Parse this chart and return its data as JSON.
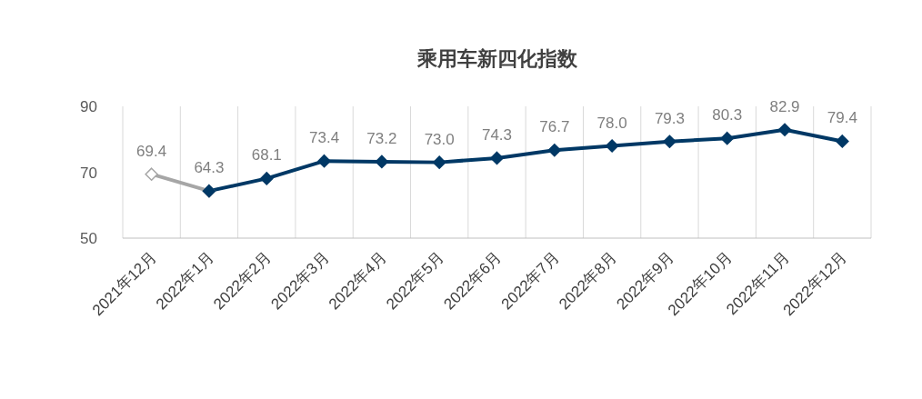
{
  "chart_data": {
    "type": "line",
    "title": "乘用车新四化指数",
    "categories": [
      "2021年12月",
      "2022年1月",
      "2022年2月",
      "2022年3月",
      "2022年4月",
      "2022年5月",
      "2022年6月",
      "2022年7月",
      "2022年8月",
      "2022年9月",
      "2022年10月",
      "2022年11月",
      "2022年12月"
    ],
    "series": [
      {
        "color": "#a6a6a6",
        "values": [
          69.4,
          64.3,
          null,
          null,
          null,
          null,
          null,
          null,
          null,
          null,
          null,
          null,
          null
        ],
        "value_labels": [
          "69.4",
          null,
          null,
          null,
          null,
          null,
          null,
          null,
          null,
          null,
          null,
          null,
          null
        ]
      },
      {
        "color": "#003865",
        "values": [
          null,
          64.3,
          68.1,
          73.4,
          73.2,
          73.0,
          74.3,
          76.7,
          78.0,
          79.3,
          80.3,
          82.9,
          79.4
        ],
        "value_labels": [
          null,
          "64.3",
          "68.1",
          "73.4",
          "73.2",
          "73.0",
          "74.3",
          "76.7",
          "78.0",
          "79.3",
          "80.3",
          "82.9",
          "79.4"
        ]
      }
    ],
    "ylim": [
      50,
      90
    ],
    "yticks": [
      50,
      70,
      90
    ],
    "grid": "x",
    "marker": "diamond",
    "line_style": "solid"
  }
}
